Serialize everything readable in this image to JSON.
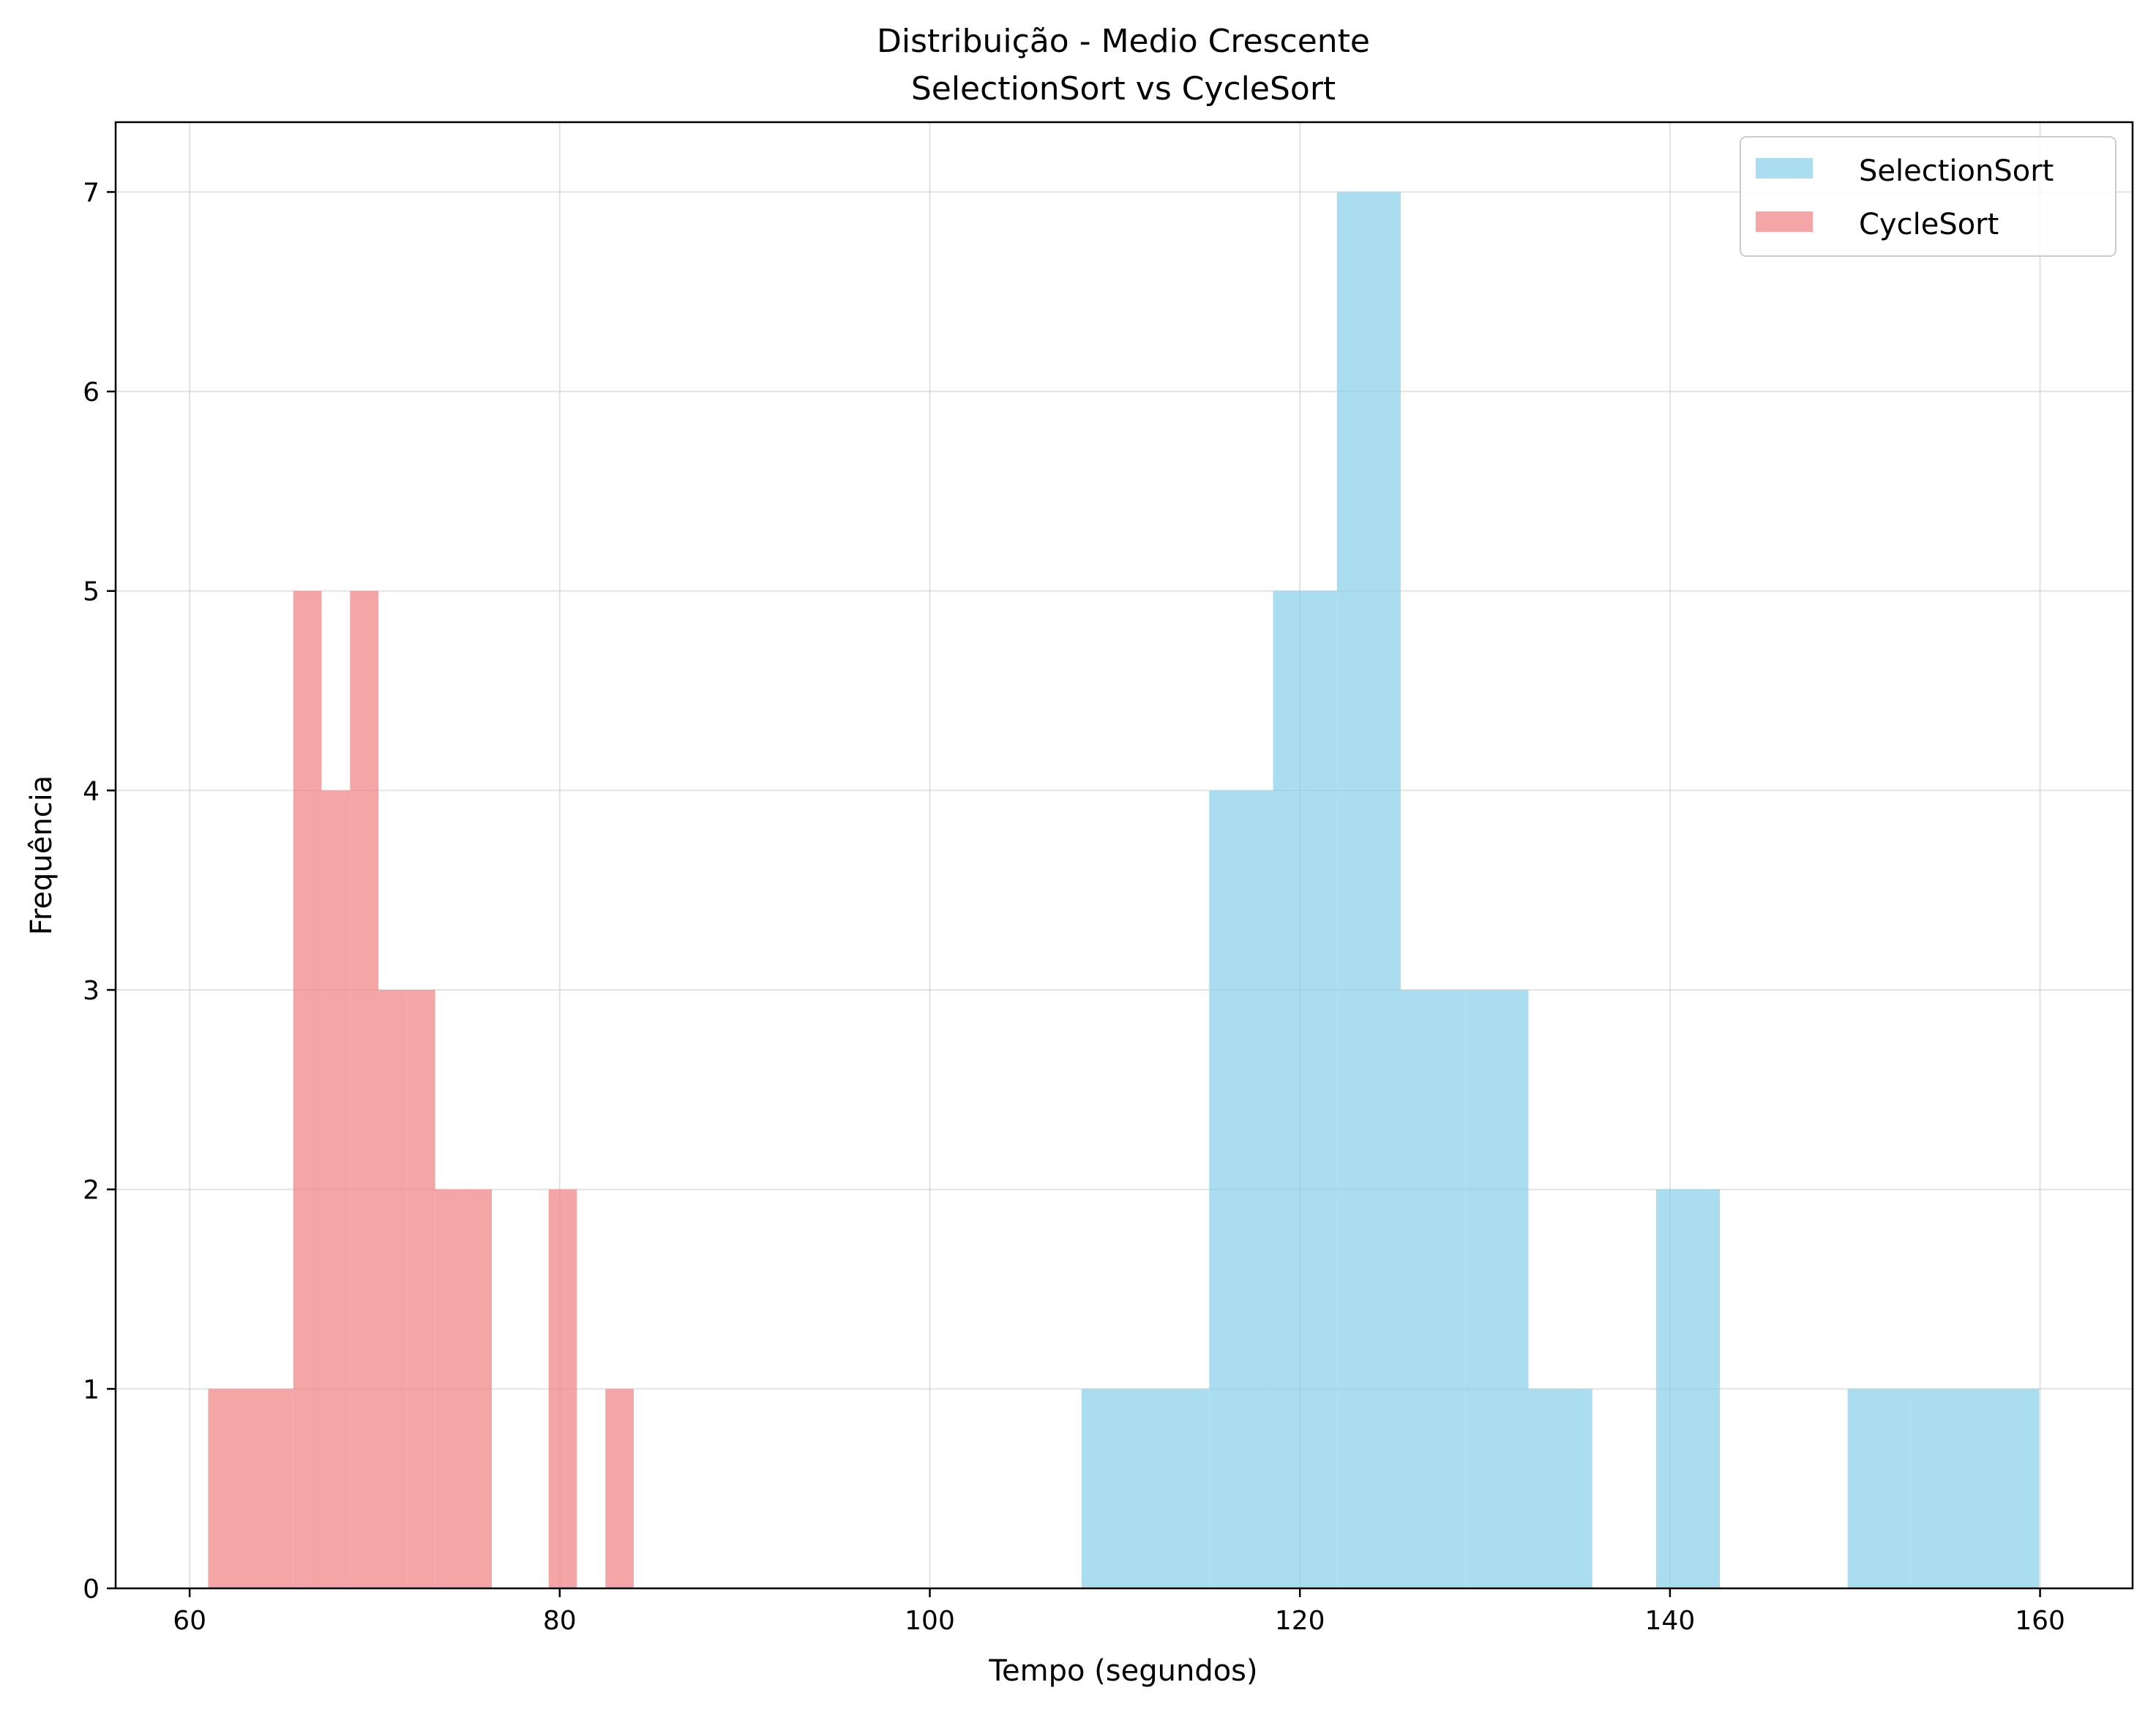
{
  "chart_data": {
    "type": "histogram",
    "title_line1": "Distribuição - Medio Crescente",
    "title_line2": "SelectionSort vs CycleSort",
    "xlabel": "Tempo (segundos)",
    "ylabel": "Frequência",
    "xlim": [
      56,
      165
    ],
    "ylim": [
      0,
      7.35
    ],
    "x_ticks": [
      60,
      80,
      100,
      120,
      140,
      160
    ],
    "y_ticks": [
      0,
      1,
      2,
      3,
      4,
      5,
      6,
      7
    ],
    "grid": true,
    "legend_position": "top-right",
    "series": [
      {
        "name": "SelectionSort",
        "color": "#87ceeb",
        "bins": [
          {
            "x0": 108.2,
            "x1": 111.65,
            "count": 1
          },
          {
            "x0": 111.65,
            "x1": 115.1,
            "count": 1
          },
          {
            "x0": 115.1,
            "x1": 118.55,
            "count": 4
          },
          {
            "x0": 118.55,
            "x1": 122.0,
            "count": 5
          },
          {
            "x0": 122.0,
            "x1": 125.45,
            "count": 7
          },
          {
            "x0": 125.45,
            "x1": 128.9,
            "count": 3
          },
          {
            "x0": 128.9,
            "x1": 132.35,
            "count": 3
          },
          {
            "x0": 132.35,
            "x1": 135.8,
            "count": 1
          },
          {
            "x0": 135.8,
            "x1": 139.25,
            "count": 0
          },
          {
            "x0": 139.25,
            "x1": 142.7,
            "count": 2
          },
          {
            "x0": 142.7,
            "x1": 146.15,
            "count": 0
          },
          {
            "x0": 146.15,
            "x1": 149.6,
            "count": 0
          },
          {
            "x0": 149.6,
            "x1": 153.05,
            "count": 1
          },
          {
            "x0": 153.05,
            "x1": 156.5,
            "count": 1
          },
          {
            "x0": 156.5,
            "x1": 159.95,
            "count": 1
          }
        ]
      },
      {
        "name": "CycleSort",
        "color": "#f08080",
        "bins": [
          {
            "x0": 61.0,
            "x1": 62.53,
            "count": 1
          },
          {
            "x0": 62.53,
            "x1": 64.07,
            "count": 1
          },
          {
            "x0": 64.07,
            "x1": 65.6,
            "count": 1
          },
          {
            "x0": 65.6,
            "x1": 67.13,
            "count": 5
          },
          {
            "x0": 67.13,
            "x1": 68.67,
            "count": 4
          },
          {
            "x0": 68.67,
            "x1": 70.2,
            "count": 5
          },
          {
            "x0": 70.2,
            "x1": 71.73,
            "count": 3
          },
          {
            "x0": 71.73,
            "x1": 73.27,
            "count": 3
          },
          {
            "x0": 73.27,
            "x1": 74.8,
            "count": 2
          },
          {
            "x0": 74.8,
            "x1": 76.33,
            "count": 2
          },
          {
            "x0": 76.33,
            "x1": 77.87,
            "count": 0
          },
          {
            "x0": 77.87,
            "x1": 79.4,
            "count": 0
          },
          {
            "x0": 79.4,
            "x1": 80.93,
            "count": 2
          },
          {
            "x0": 80.93,
            "x1": 82.47,
            "count": 0
          },
          {
            "x0": 82.47,
            "x1": 84.0,
            "count": 1
          }
        ]
      }
    ]
  }
}
